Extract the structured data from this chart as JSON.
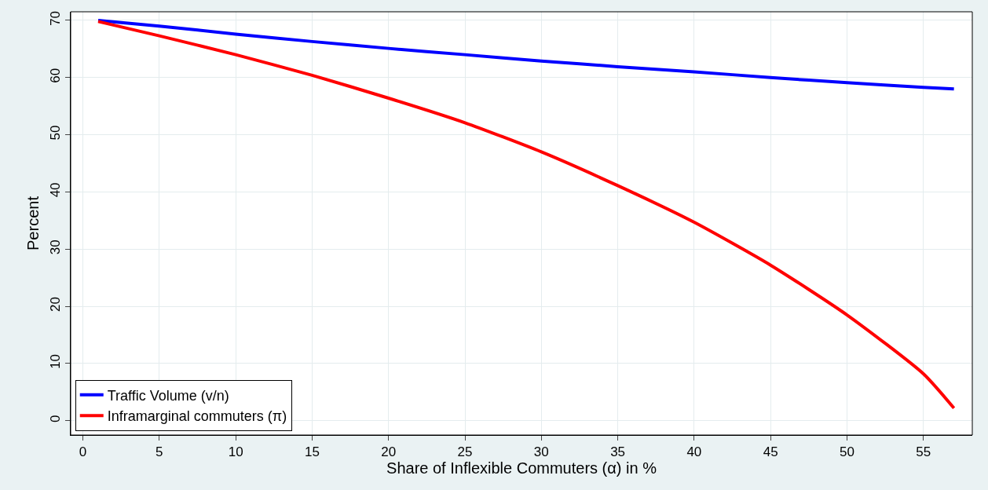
{
  "chart_data": {
    "type": "line",
    "xlabel": "Share of Inflexible Commuters (α) in %",
    "ylabel": "Percent",
    "x": [
      1,
      5,
      10,
      15,
      20,
      25,
      30,
      35,
      40,
      45,
      50,
      55,
      57
    ],
    "series": [
      {
        "name": "Traffic Volume (v/n)",
        "color": "#0000ff",
        "values": [
          70,
          69,
          67.6,
          66.3,
          65.1,
          64,
          62.9,
          61.9,
          61,
          60,
          59.1,
          58.3,
          58
        ]
      },
      {
        "name": "Inframarginal commuters (π)",
        "color": "#ff0000",
        "values": [
          69.8,
          67.3,
          64,
          60.4,
          56.4,
          52.1,
          47,
          41.1,
          34.7,
          27.2,
          18.5,
          8.2,
          2.2
        ]
      }
    ],
    "xlim": [
      -0.8,
      58.2
    ],
    "xticks": [
      0,
      5,
      10,
      15,
      20,
      25,
      30,
      35,
      40,
      45,
      50,
      55
    ],
    "ylim": [
      -2.5,
      71.5
    ],
    "yticks": [
      0,
      10,
      20,
      30,
      40,
      50,
      60,
      70
    ],
    "grid": true,
    "legend": "bottom left",
    "marker": "none",
    "line_style": "solid"
  }
}
